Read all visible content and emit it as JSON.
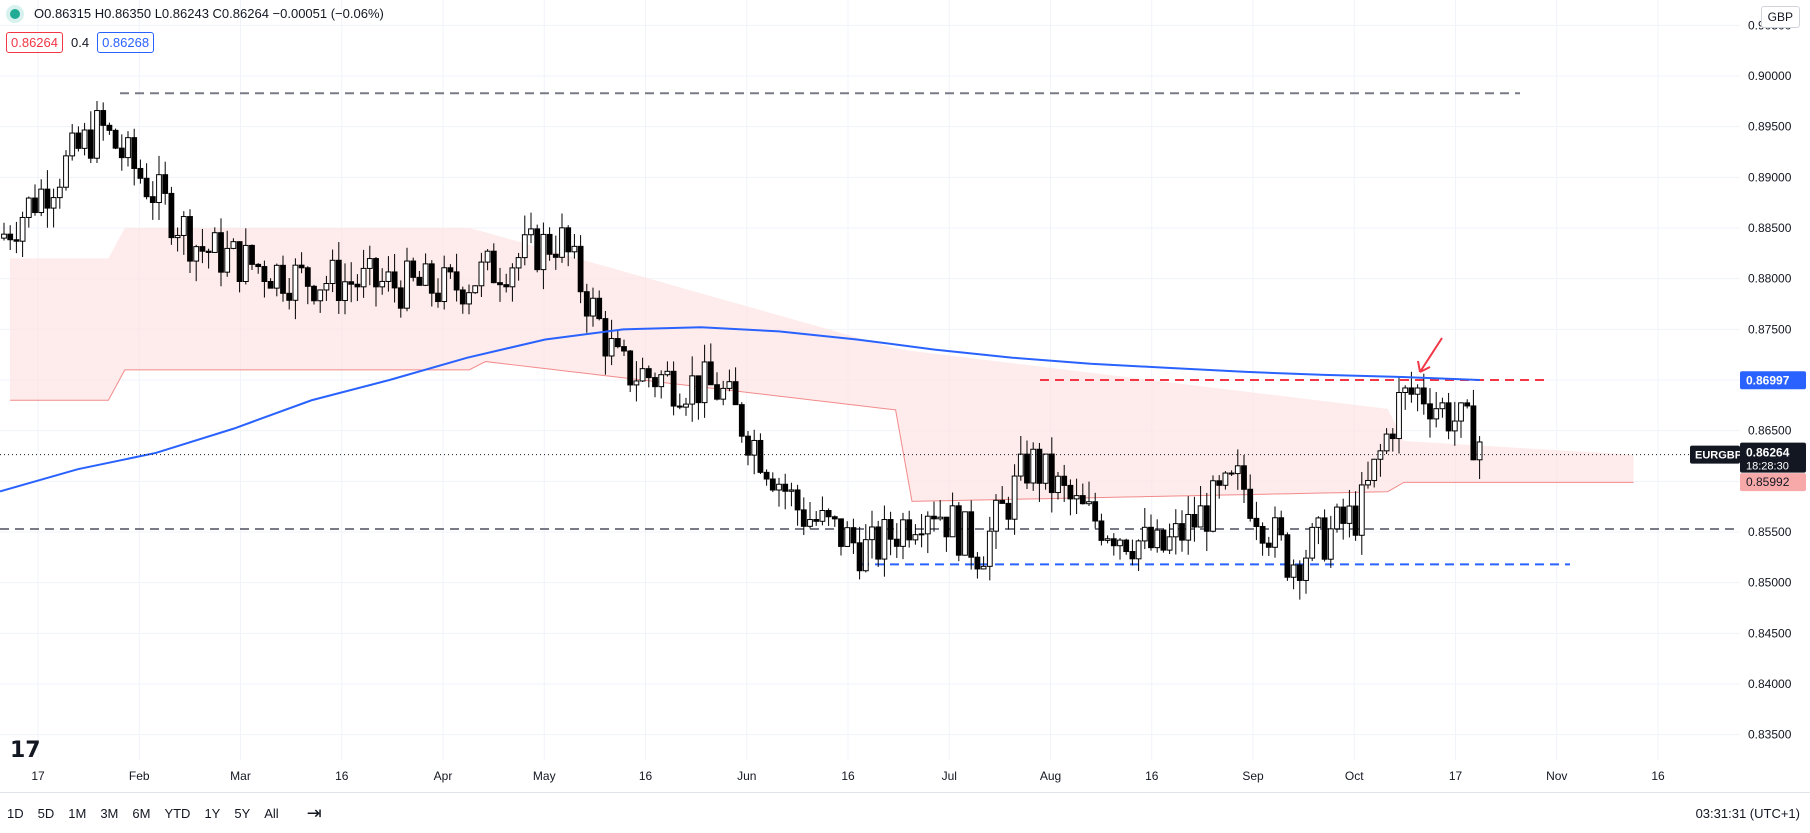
{
  "header": {
    "ohlc_text": "O0.86315 H0.86350 L0.86243 C0.86264 −0.00051 (−0.06%)",
    "indicator_values": [
      "0.86264",
      "0.4",
      "0.86268"
    ]
  },
  "currency_button": "GBP",
  "symbol": "EURGBP",
  "last_price": "0.86264",
  "countdown": "18:28:30",
  "price_labels": {
    "ma": "0.86997",
    "cloud": "0.85992"
  },
  "colors": {
    "ma_line": "#2962ff",
    "cloud_bull": "#e6f4e6",
    "cloud_bear": "#fde0e0",
    "cloud_edge": "#f28b8b",
    "candle_up": "#ffffff",
    "candle_down": "#000000",
    "resistance": "#f23645",
    "support": "#2962ff",
    "level": "#787b86",
    "annotation_arrow": "#f23645"
  },
  "timeframes": [
    "1D",
    "5D",
    "1M",
    "3M",
    "6M",
    "YTD",
    "1Y",
    "5Y",
    "All"
  ],
  "clock_text": "03:31:31 (UTC+1)",
  "chart_data": {
    "type": "candlestick",
    "title": "EURGBP",
    "ylim": [
      0.8325,
      0.9075
    ],
    "y_ticks": [
      "0.90500",
      "0.90000",
      "0.89500",
      "0.89000",
      "0.88500",
      "0.88000",
      "0.87500",
      "0.87000",
      "0.86500",
      "0.86000",
      "0.85500",
      "0.85000",
      "0.84500",
      "0.84000",
      "0.83500"
    ],
    "x_ticks": [
      "17",
      "Feb",
      "Mar",
      "16",
      "Apr",
      "May",
      "16",
      "Jun",
      "16",
      "Jul",
      "Aug",
      "16",
      "Sep",
      "Oct",
      "17",
      "Nov",
      "16"
    ],
    "grid": true,
    "levels": [
      {
        "kind": "dashed",
        "color": "level",
        "value": 0.8983
      },
      {
        "kind": "dashed",
        "color": "level",
        "value": 0.8553
      },
      {
        "kind": "dashed",
        "color": "resistance",
        "value": 0.87
      },
      {
        "kind": "dashed",
        "color": "support",
        "value": 0.8518
      }
    ],
    "ma_line": [
      0.859,
      0.8612,
      0.8628,
      0.8652,
      0.868,
      0.87,
      0.8722,
      0.874,
      0.875,
      0.8752,
      0.8748,
      0.874,
      0.873,
      0.8722,
      0.8716,
      0.8712,
      0.8708,
      0.8705,
      0.8703,
      0.87
    ],
    "ma_last": 0.86997,
    "cloud_last": 0.85992,
    "close_last": 0.86264,
    "candles_note": "approximate daily candles, Jan–Oct"
  }
}
